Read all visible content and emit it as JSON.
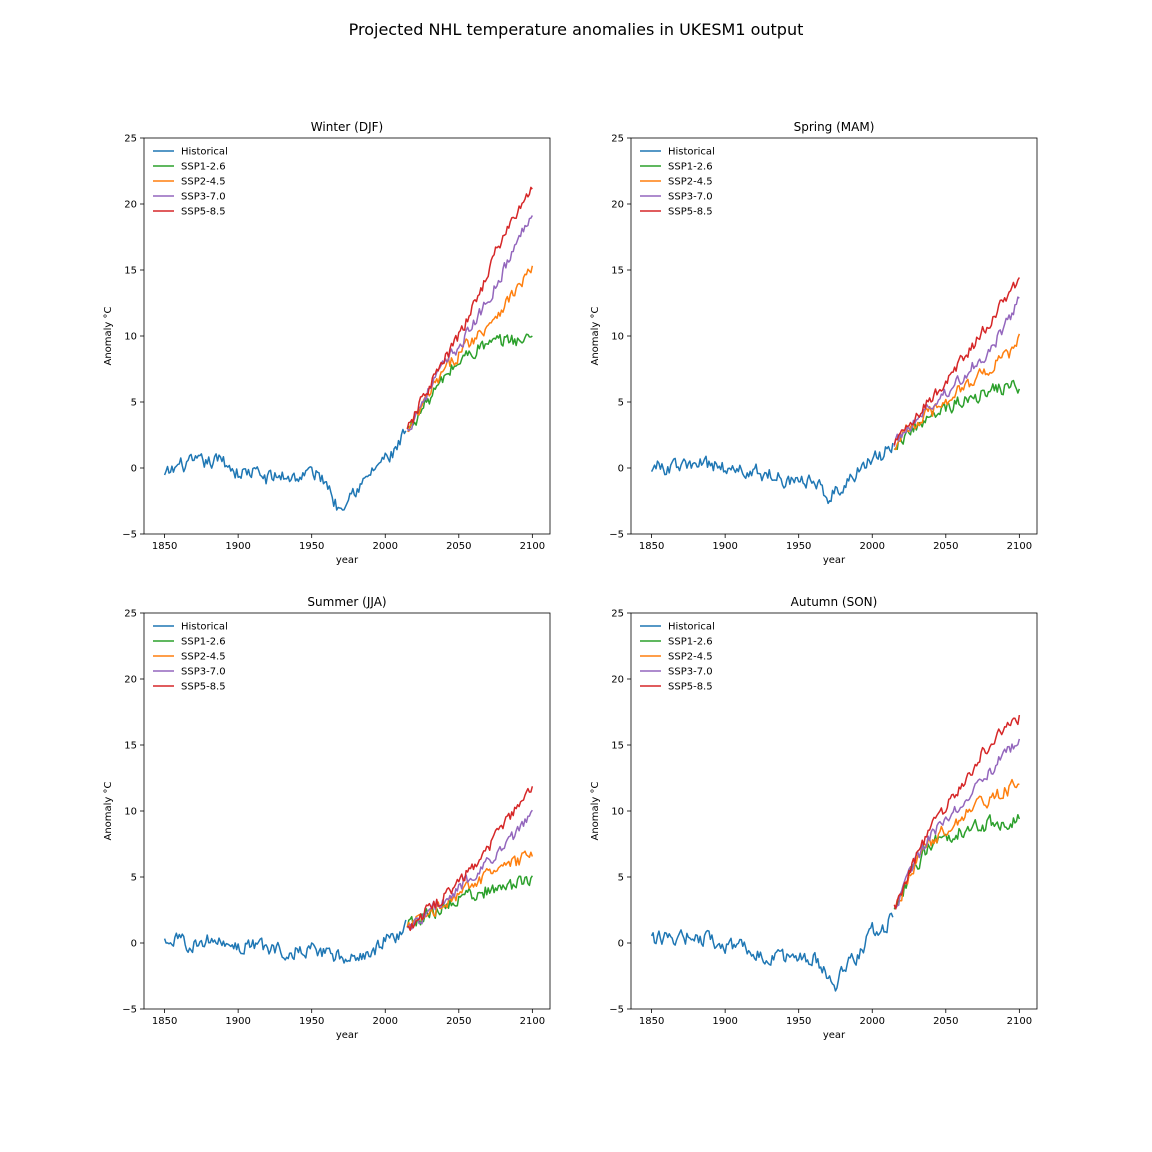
{
  "figure": {
    "suptitle": "Projected NHL temperature anomalies in UKESM1 output"
  },
  "legend": {
    "placement": "upper-left",
    "entries": [
      "Historical",
      "SSP1-2.6",
      "SSP2-4.5",
      "SSP3-7.0",
      "SSP5-8.5"
    ]
  },
  "colors": {
    "Historical": "#1f77b4",
    "SSP1-2.6": "#2ca02c",
    "SSP2-4.5": "#ff7f0e",
    "SSP3-7.0": "#9467bd",
    "SSP5-8.5": "#d62728"
  },
  "chart_data": [
    {
      "type": "line",
      "title": "Winter (DJF)",
      "xlabel": "year",
      "ylabel": "Anomaly °C",
      "xlim": [
        1836,
        2112
      ],
      "ylim": [
        -5,
        25
      ],
      "xticks": [
        1850,
        1900,
        1950,
        2000,
        2050,
        2100
      ],
      "yticks": [
        -5,
        0,
        5,
        10,
        15,
        20,
        25
      ],
      "grid": false,
      "legend": "upper-left",
      "series": [
        {
          "name": "Historical",
          "x": [
            1850,
            1860,
            1870,
            1880,
            1890,
            1900,
            1910,
            1920,
            1930,
            1940,
            1950,
            1960,
            1968,
            1975,
            1985,
            1995,
            2005,
            2014
          ],
          "y": [
            -0.7,
            0.2,
            0.3,
            0.4,
            0.6,
            -0.4,
            -0.3,
            -0.8,
            -0.6,
            -0.7,
            -0.3,
            -1.0,
            -3.1,
            -1.8,
            -1.2,
            0.3,
            1.0,
            2.6
          ]
        },
        {
          "name": "SSP1-2.6",
          "x": [
            2015,
            2025,
            2035,
            2045,
            2055,
            2065,
            2075,
            2085,
            2095,
            2100
          ],
          "y": [
            2.8,
            4.5,
            6.0,
            7.5,
            8.5,
            9.2,
            9.4,
            9.8,
            9.6,
            10.1
          ]
        },
        {
          "name": "SSP2-4.5",
          "x": [
            2015,
            2025,
            2035,
            2045,
            2055,
            2065,
            2075,
            2085,
            2095,
            2100
          ],
          "y": [
            2.6,
            4.6,
            6.5,
            8.0,
            9.3,
            10.3,
            11.6,
            12.9,
            14.4,
            15.2
          ]
        },
        {
          "name": "SSP3-7.0",
          "x": [
            2015,
            2025,
            2035,
            2045,
            2055,
            2065,
            2075,
            2085,
            2095,
            2100
          ],
          "y": [
            2.8,
            5.0,
            7.0,
            8.5,
            10.0,
            11.8,
            13.8,
            16.0,
            18.3,
            19.7
          ]
        },
        {
          "name": "SSP5-8.5",
          "x": [
            2015,
            2025,
            2035,
            2045,
            2055,
            2065,
            2075,
            2085,
            2095,
            2100
          ],
          "y": [
            2.7,
            5.2,
            7.2,
            9.0,
            11.0,
            13.5,
            16.3,
            18.5,
            20.3,
            21.2
          ]
        }
      ]
    },
    {
      "type": "line",
      "title": "Spring (MAM)",
      "xlabel": "year",
      "ylabel": "Anomaly °C",
      "xlim": [
        1836,
        2112
      ],
      "ylim": [
        -5,
        25
      ],
      "xticks": [
        1850,
        1900,
        1950,
        2000,
        2050,
        2100
      ],
      "yticks": [
        -5,
        0,
        5,
        10,
        15,
        20,
        25
      ],
      "grid": false,
      "legend": "upper-left",
      "series": [
        {
          "name": "Historical",
          "x": [
            1850,
            1860,
            1870,
            1880,
            1890,
            1900,
            1910,
            1920,
            1930,
            1940,
            1950,
            1960,
            1970,
            1980,
            1990,
            2000,
            2008,
            2014
          ],
          "y": [
            0.2,
            0.0,
            0.1,
            0.2,
            0.3,
            0.0,
            -0.2,
            -0.3,
            -0.5,
            -0.8,
            -0.9,
            -1.2,
            -2.0,
            -1.3,
            -0.2,
            0.6,
            1.0,
            1.8
          ]
        },
        {
          "name": "SSP1-2.6",
          "x": [
            2015,
            2025,
            2035,
            2045,
            2055,
            2065,
            2075,
            2085,
            2095,
            2100
          ],
          "y": [
            1.8,
            2.8,
            3.4,
            4.1,
            4.8,
            5.4,
            5.6,
            6.0,
            6.2,
            6.0
          ]
        },
        {
          "name": "SSP2-4.5",
          "x": [
            2015,
            2025,
            2035,
            2045,
            2055,
            2065,
            2075,
            2085,
            2095,
            2100
          ],
          "y": [
            1.8,
            3.0,
            3.8,
            4.6,
            5.6,
            6.4,
            7.1,
            8.0,
            8.8,
            9.6
          ]
        },
        {
          "name": "SSP3-7.0",
          "x": [
            2015,
            2025,
            2035,
            2045,
            2055,
            2065,
            2075,
            2085,
            2095,
            2100
          ],
          "y": [
            1.9,
            3.1,
            4.2,
            5.2,
            6.2,
            7.3,
            8.4,
            9.8,
            11.6,
            13.0
          ]
        },
        {
          "name": "SSP5-8.5",
          "x": [
            2015,
            2025,
            2035,
            2045,
            2055,
            2065,
            2075,
            2085,
            2095,
            2100
          ],
          "y": [
            2.0,
            3.4,
            4.6,
            5.8,
            7.2,
            8.8,
            10.3,
            12.0,
            13.6,
            14.4
          ]
        }
      ]
    },
    {
      "type": "line",
      "title": "Summer (JJA)",
      "xlabel": "year",
      "ylabel": "Anomaly °C",
      "xlim": [
        1836,
        2112
      ],
      "ylim": [
        -5,
        25
      ],
      "xticks": [
        1850,
        1900,
        1950,
        2000,
        2050,
        2100
      ],
      "yticks": [
        -5,
        0,
        5,
        10,
        15,
        20,
        25
      ],
      "grid": false,
      "legend": "upper-left",
      "series": [
        {
          "name": "Historical",
          "x": [
            1850,
            1860,
            1870,
            1880,
            1890,
            1900,
            1910,
            1920,
            1930,
            1940,
            1950,
            1960,
            1970,
            1980,
            1990,
            2000,
            2008,
            2014
          ],
          "y": [
            0.4,
            0.0,
            0.1,
            0.2,
            -0.1,
            -0.2,
            -0.2,
            -0.3,
            -0.5,
            -0.6,
            -0.5,
            -0.7,
            -1.3,
            -1.1,
            -0.8,
            0.2,
            0.6,
            1.1
          ]
        },
        {
          "name": "SSP1-2.6",
          "x": [
            2015,
            2025,
            2035,
            2045,
            2055,
            2065,
            2075,
            2085,
            2095,
            2100
          ],
          "y": [
            1.2,
            1.9,
            2.5,
            3.1,
            3.6,
            3.9,
            4.1,
            4.4,
            4.5,
            4.6
          ]
        },
        {
          "name": "SSP2-4.5",
          "x": [
            2015,
            2025,
            2035,
            2045,
            2055,
            2065,
            2075,
            2085,
            2095,
            2100
          ],
          "y": [
            1.2,
            2.0,
            2.7,
            3.4,
            4.1,
            4.8,
            5.4,
            5.9,
            6.4,
            6.8
          ]
        },
        {
          "name": "SSP3-7.0",
          "x": [
            2015,
            2025,
            2035,
            2045,
            2055,
            2065,
            2075,
            2085,
            2095,
            2100
          ],
          "y": [
            1.1,
            2.0,
            2.8,
            3.7,
            4.6,
            5.7,
            6.7,
            7.8,
            9.2,
            10.1
          ]
        },
        {
          "name": "SSP5-8.5",
          "x": [
            2015,
            2025,
            2035,
            2045,
            2055,
            2065,
            2075,
            2085,
            2095,
            2100
          ],
          "y": [
            1.2,
            2.1,
            3.0,
            4.0,
            5.2,
            6.5,
            8.0,
            9.5,
            11.0,
            11.7
          ]
        }
      ]
    },
    {
      "type": "line",
      "title": "Autumn (SON)",
      "xlabel": "year",
      "ylabel": "Anomaly °C",
      "xlim": [
        1836,
        2112
      ],
      "ylim": [
        -5,
        25
      ],
      "xticks": [
        1850,
        1900,
        1950,
        2000,
        2050,
        2100
      ],
      "yticks": [
        -5,
        0,
        5,
        10,
        15,
        20,
        25
      ],
      "grid": false,
      "legend": "upper-left",
      "series": [
        {
          "name": "Historical",
          "x": [
            1850,
            1860,
            1870,
            1880,
            1890,
            1900,
            1910,
            1920,
            1930,
            1940,
            1950,
            1960,
            1970,
            1975,
            1980,
            1990,
            2000,
            2008,
            2014
          ],
          "y": [
            0.2,
            0.3,
            0.4,
            0.5,
            0.2,
            -0.2,
            -0.3,
            -0.6,
            -1.0,
            -1.2,
            -1.3,
            -1.2,
            -2.6,
            -3.1,
            -2.2,
            -1.0,
            0.8,
            1.2,
            2.2
          ]
        },
        {
          "name": "SSP1-2.6",
          "x": [
            2015,
            2025,
            2035,
            2045,
            2055,
            2065,
            2075,
            2085,
            2095,
            2100
          ],
          "y": [
            2.2,
            5.0,
            6.8,
            7.8,
            8.3,
            8.6,
            8.9,
            9.2,
            9.3,
            9.8
          ]
        },
        {
          "name": "SSP2-4.5",
          "x": [
            2015,
            2025,
            2035,
            2045,
            2055,
            2065,
            2075,
            2085,
            2095,
            2100
          ],
          "y": [
            2.3,
            5.1,
            7.0,
            8.2,
            9.0,
            9.9,
            10.6,
            11.2,
            11.8,
            12.2
          ]
        },
        {
          "name": "SSP3-7.0",
          "x": [
            2015,
            2025,
            2035,
            2045,
            2055,
            2065,
            2075,
            2085,
            2095,
            2100
          ],
          "y": [
            2.4,
            5.3,
            7.4,
            8.8,
            10.0,
            11.3,
            12.5,
            13.6,
            14.8,
            15.4
          ]
        },
        {
          "name": "SSP5-8.5",
          "x": [
            2015,
            2025,
            2035,
            2045,
            2055,
            2065,
            2075,
            2085,
            2095,
            2100
          ],
          "y": [
            2.5,
            5.4,
            7.7,
            9.5,
            11.2,
            12.7,
            14.3,
            15.6,
            16.6,
            17.0
          ]
        }
      ]
    }
  ]
}
